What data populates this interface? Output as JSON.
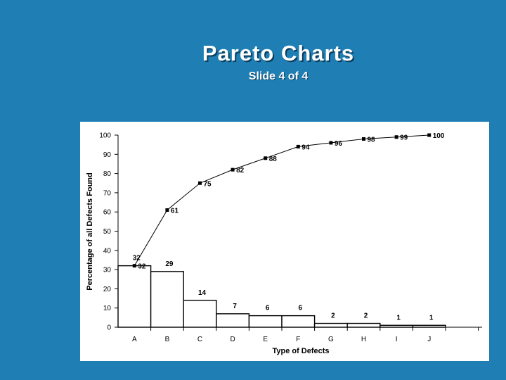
{
  "slide": {
    "title": "Pareto Charts",
    "subtitle": "Slide 4 of 4"
  },
  "colors": {
    "background": "#1f7fb5",
    "panel": "#ffffff",
    "ink": "#000000"
  },
  "chart_data": {
    "type": "bar",
    "categories": [
      "A",
      "B",
      "C",
      "D",
      "E",
      "F",
      "G",
      "H",
      "I",
      "J"
    ],
    "series": [
      {
        "type": "bar",
        "values": [
          32,
          29,
          14,
          7,
          6,
          6,
          2,
          2,
          1,
          1
        ]
      },
      {
        "type": "line",
        "values": [
          32,
          61,
          75,
          82,
          88,
          94,
          96,
          98,
          99,
          100
        ]
      }
    ],
    "xlabel": "Type of Defects",
    "ylabel": "Percentage of all Defects Found",
    "ylim": [
      0,
      100
    ],
    "yticks": [
      0,
      10,
      20,
      30,
      40,
      50,
      60,
      70,
      80,
      90,
      100
    ],
    "grid": false,
    "legend": "none"
  }
}
